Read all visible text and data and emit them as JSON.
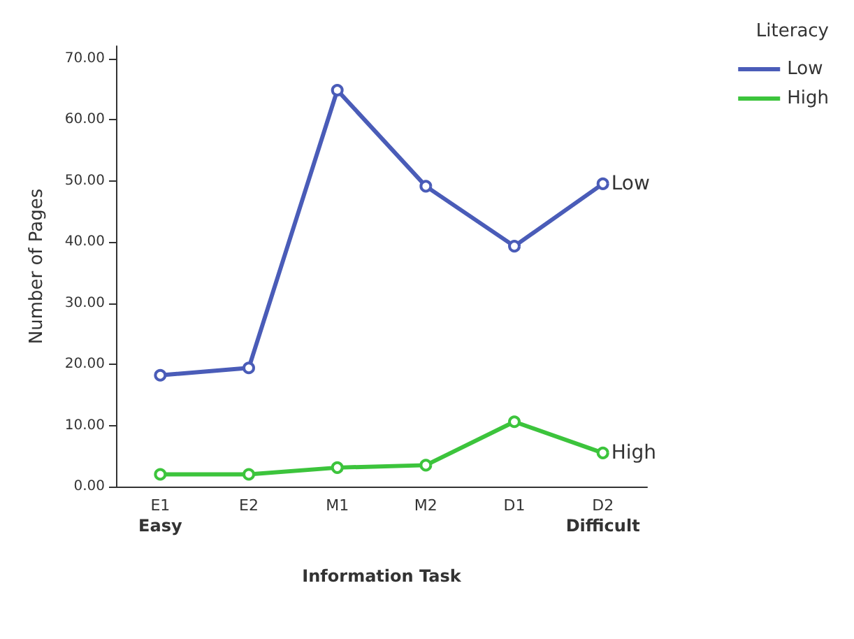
{
  "chart_data": {
    "type": "line",
    "xlabel": "Information Task",
    "ylabel": "Number of Pages",
    "legend_title": "Literacy",
    "categories": [
      "E1",
      "E2",
      "M1",
      "M2",
      "D1",
      "D2"
    ],
    "series": [
      {
        "name": "Low",
        "color": "#4a5cb8",
        "values": [
          18.2,
          19.4,
          64.8,
          49.1,
          39.3,
          49.5
        ]
      },
      {
        "name": "High",
        "color": "#3cc43c",
        "values": [
          2.0,
          2.0,
          3.1,
          3.5,
          10.6,
          5.5
        ]
      }
    ],
    "ylim": [
      0,
      72
    ],
    "yticks": [
      {
        "value": 0,
        "label": "0.00"
      },
      {
        "value": 10,
        "label": "10.00"
      },
      {
        "value": 20,
        "label": "20.00"
      },
      {
        "value": 30,
        "label": "30.00"
      },
      {
        "value": 40,
        "label": "40.00"
      },
      {
        "value": 50,
        "label": "50.00"
      },
      {
        "value": 60,
        "label": "60.00"
      },
      {
        "value": 70,
        "label": "70.00"
      }
    ],
    "annotations": [
      "Easy",
      "Difficult"
    ],
    "legend": "top right",
    "grid": false,
    "marker": "circle",
    "line_style": "solid"
  }
}
